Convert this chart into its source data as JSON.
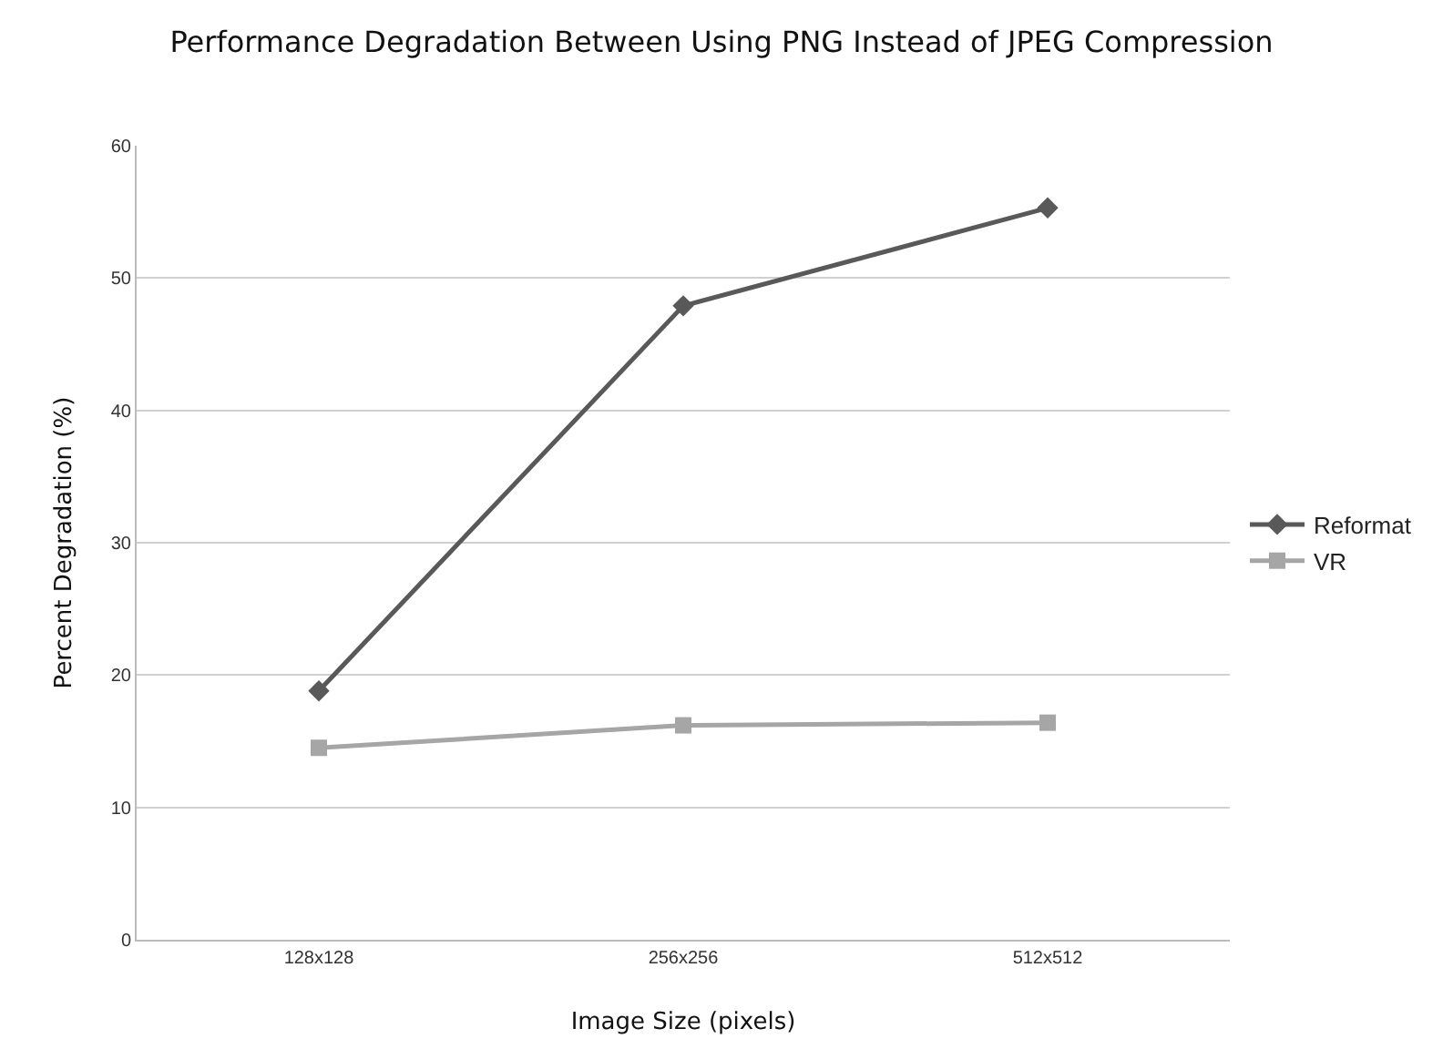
{
  "chart_data": {
    "type": "line",
    "title": "Performance Degradation Between Using PNG Instead of JPEG Compression",
    "xlabel": "Image Size (pixels)",
    "ylabel": "Percent Degradation (%)",
    "categories": [
      "128x128",
      "256x256",
      "512x512"
    ],
    "series": [
      {
        "name": "Reformat",
        "color": "#595959",
        "marker": "diamond",
        "values": [
          18.8,
          47.9,
          55.3
        ]
      },
      {
        "name": "VR",
        "color": "#a6a6a6",
        "marker": "square",
        "values": [
          14.5,
          16.2,
          16.4
        ]
      }
    ],
    "ylim": [
      0,
      60
    ],
    "yticks": [
      0,
      10,
      20,
      30,
      40,
      50,
      60
    ],
    "grid": "y",
    "legend": "right",
    "line_style": "solid"
  }
}
